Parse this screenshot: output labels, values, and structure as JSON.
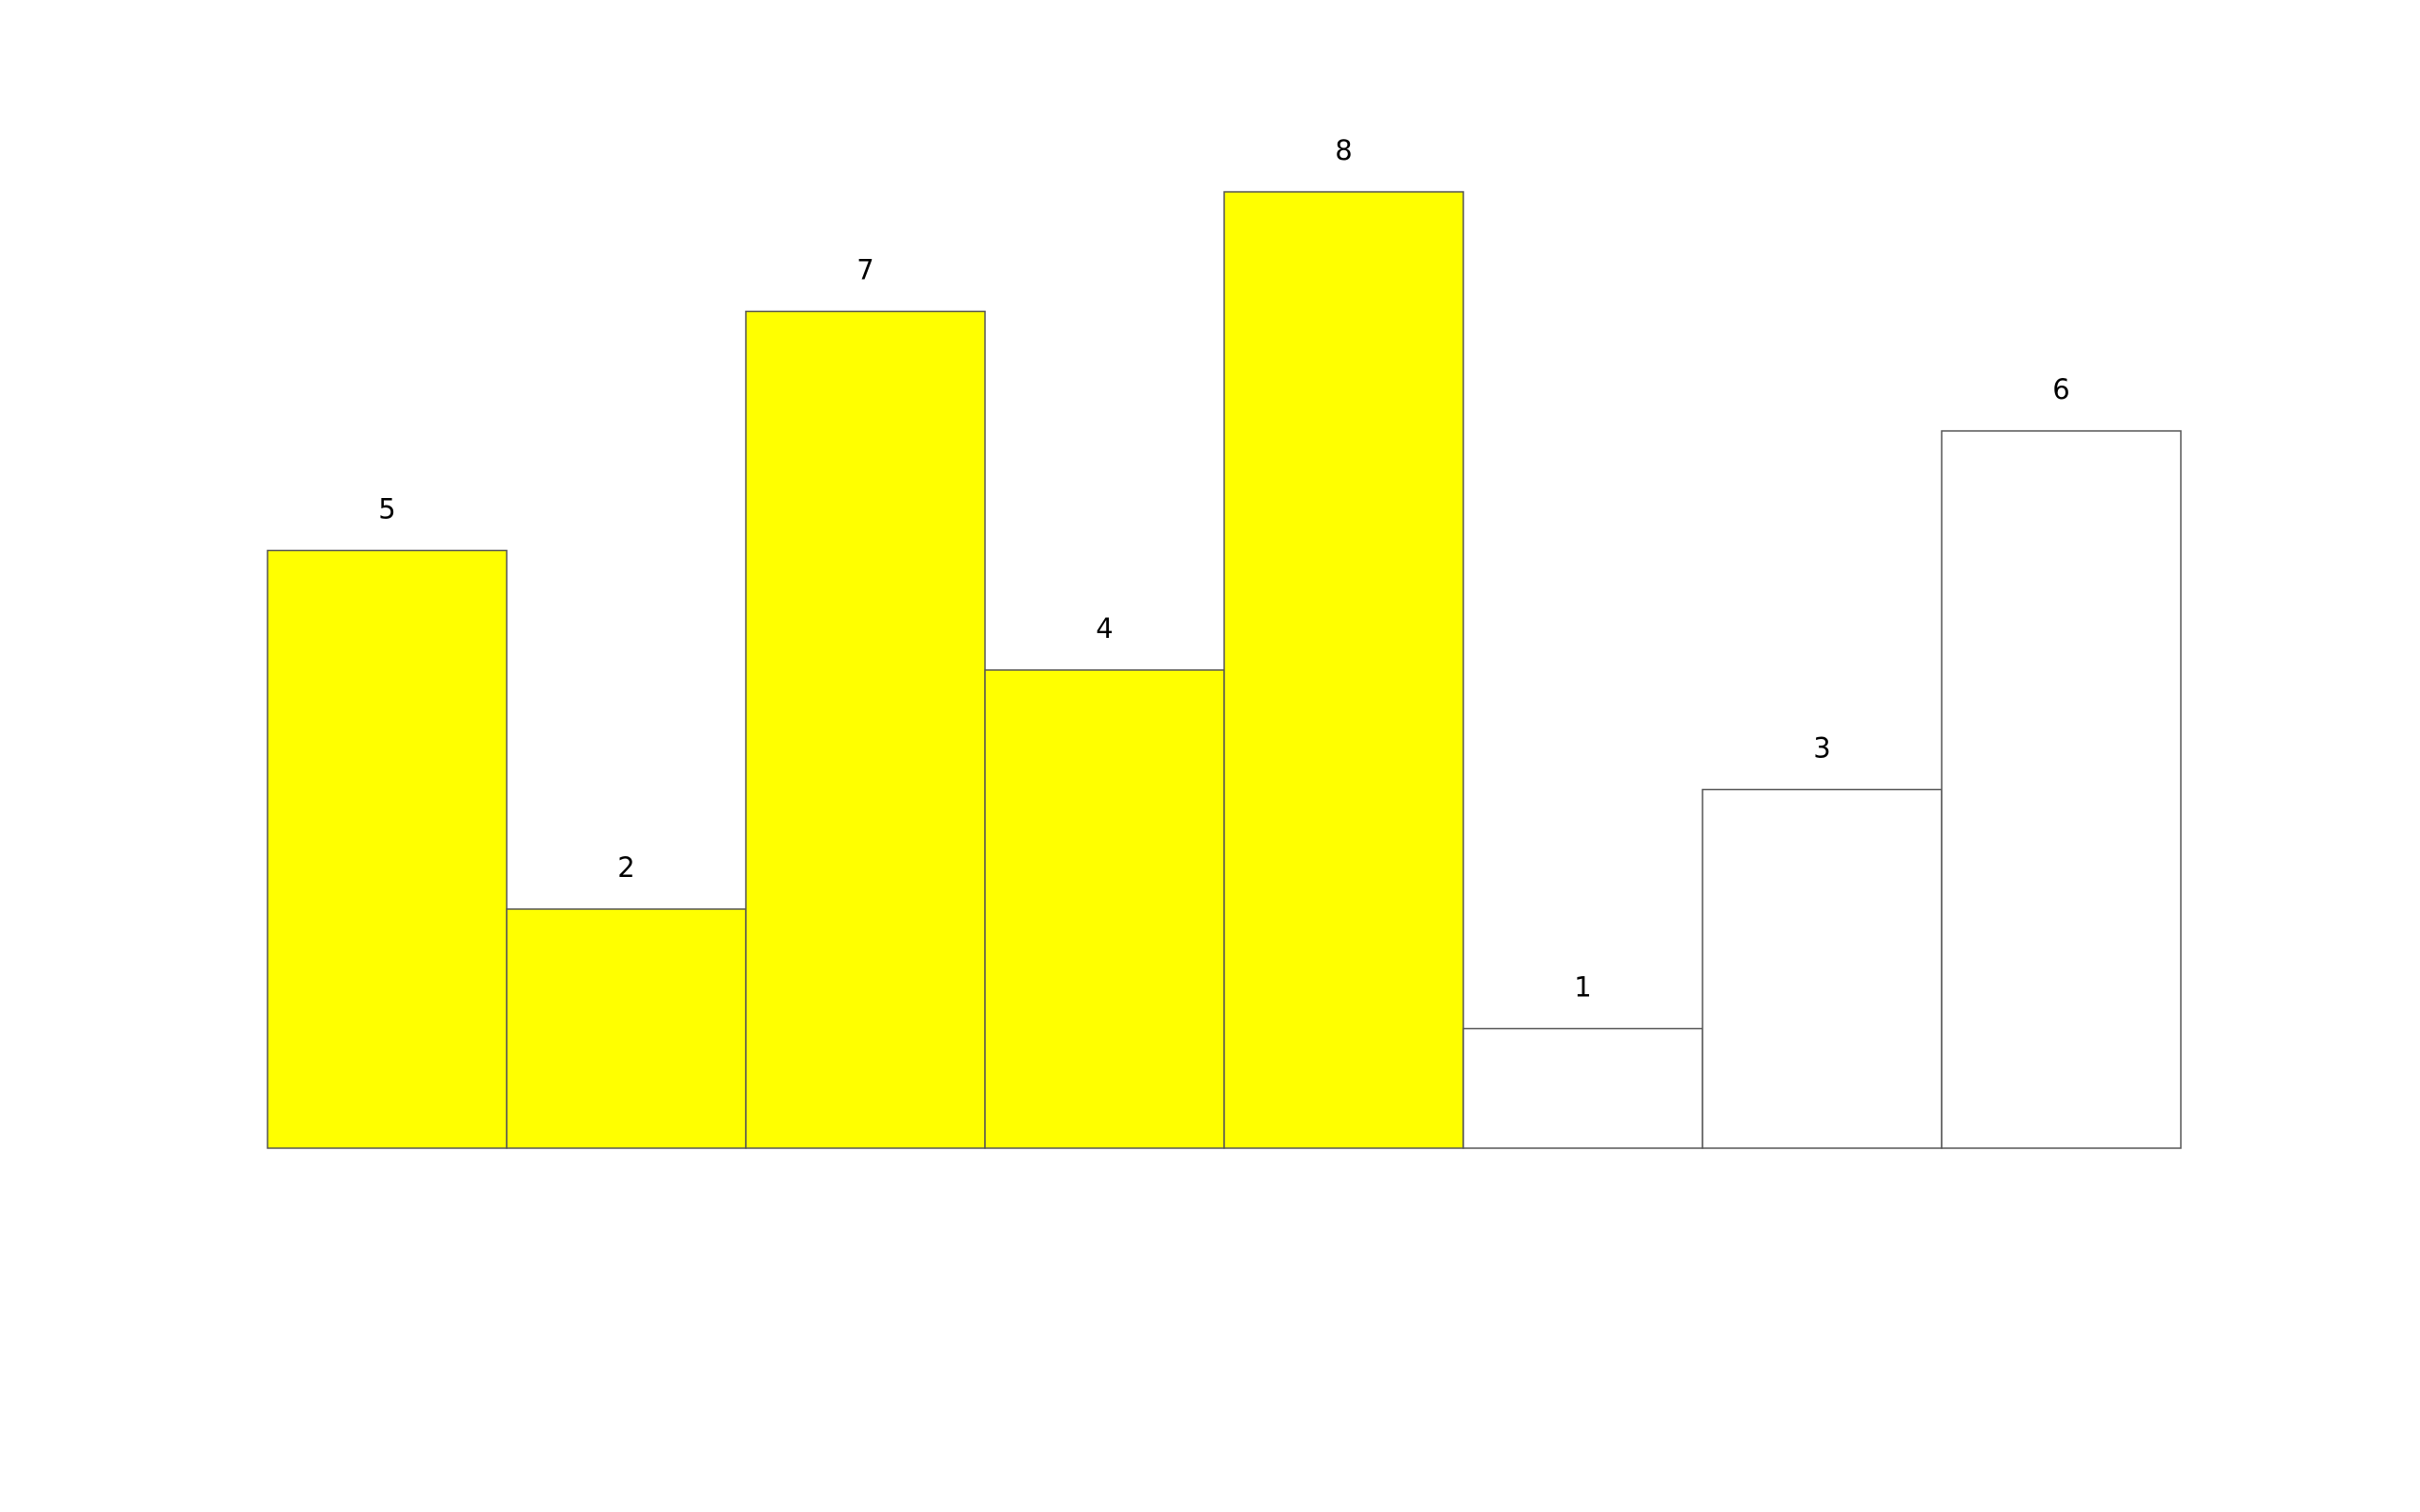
{
  "chart_data": {
    "type": "bar",
    "categories": [
      "",
      "",
      "",
      "",
      "",
      "",
      "",
      ""
    ],
    "values": [
      5,
      2,
      7,
      4,
      8,
      1,
      3,
      6
    ],
    "data_labels": [
      "5",
      "2",
      "7",
      "4",
      "8",
      "1",
      "3",
      "6"
    ],
    "highlighted_count": 5,
    "ylim": [
      0,
      8
    ],
    "title": "",
    "xlabel": "",
    "ylabel": "",
    "grid": false,
    "colors": {
      "highlight_fill": "#ffff00",
      "default_fill": "#ffffff",
      "stroke": "#555555",
      "label": "#000000"
    }
  }
}
